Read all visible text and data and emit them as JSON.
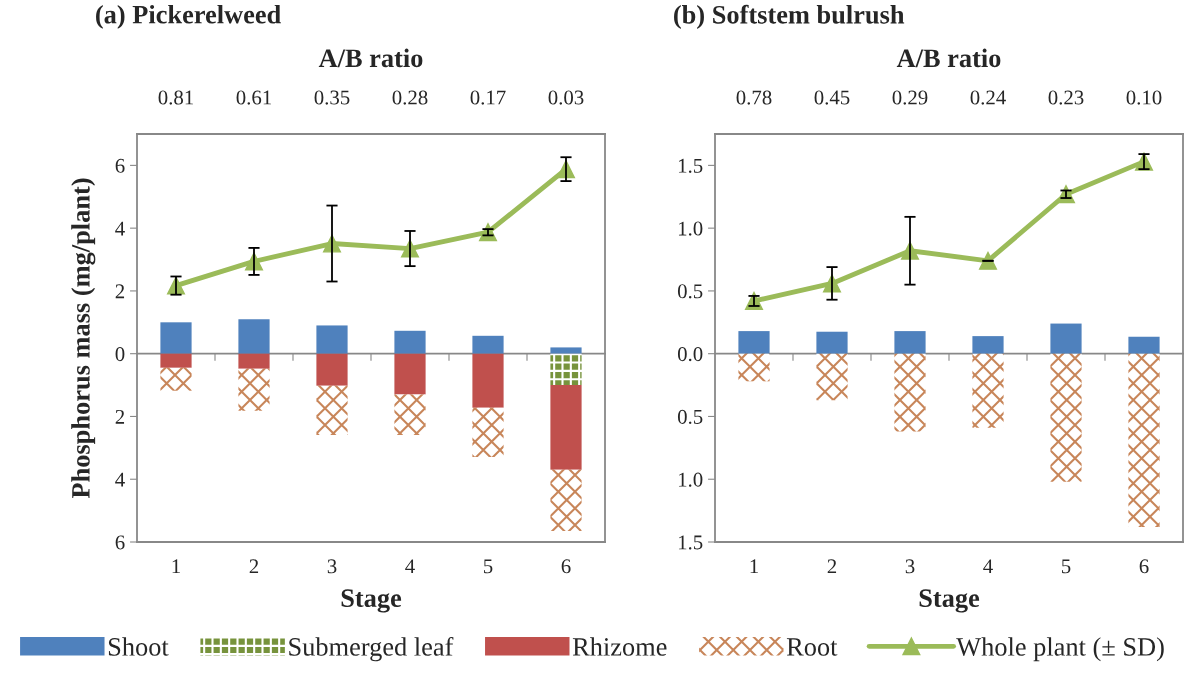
{
  "chart_data": [
    {
      "type": "bar",
      "title": "(a) Pickerelweed",
      "xlabel": "Stage",
      "ylabel": "Phosphorus mass (mg/plant)",
      "stacked": true,
      "legend": "bottom",
      "categories": [
        "1",
        "2",
        "3",
        "4",
        "5",
        "6"
      ],
      "annotations": [
        "A/B ratio",
        "0.81",
        "0.61",
        "0.35",
        "0.28",
        "0.17",
        "0.03"
      ],
      "ylim": [
        -6,
        7
      ],
      "yticks": [
        {
          "value": -6,
          "label": "6"
        },
        {
          "value": -4,
          "label": "4"
        },
        {
          "value": -2,
          "label": "2"
        },
        0,
        2,
        4,
        6
      ],
      "series": [
        {
          "name": "Shoot",
          "color": "#4f81bd",
          "values": [
            1.0,
            1.1,
            0.9,
            0.73,
            0.57,
            0.2
          ]
        },
        {
          "name": "Submerged leaf",
          "color": "#77933c",
          "values": [
            0,
            0,
            0,
            0,
            0,
            -1.0
          ]
        },
        {
          "name": "Rhizome",
          "color": "#c0504d",
          "values": [
            -0.45,
            -0.48,
            -1.02,
            -1.3,
            -1.72,
            -2.7
          ]
        },
        {
          "name": "Root",
          "color": "#c8865a",
          "values": [
            -0.73,
            -1.34,
            -1.57,
            -1.29,
            -1.57,
            -1.95
          ]
        },
        {
          "name": "Whole plant (± SD)",
          "type": "line",
          "color": "#9bbb59",
          "marker": "triangle",
          "line_style": "solid",
          "values": [
            2.17,
            2.94,
            3.51,
            3.35,
            3.87,
            5.88
          ],
          "errors": [
            0.29,
            0.43,
            1.21,
            0.56,
            0.1,
            0.38
          ]
        }
      ]
    },
    {
      "type": "bar",
      "title": "(b) Softstem bulrush",
      "xlabel": "Stage",
      "stacked": true,
      "categories": [
        "1",
        "2",
        "3",
        "4",
        "5",
        "6"
      ],
      "annotations": [
        "A/B ratio",
        "0.78",
        "0.45",
        "0.29",
        "0.24",
        "0.23",
        "0.10"
      ],
      "ylim": [
        -1.5,
        1.75
      ],
      "yticks": [
        {
          "value": -1.5,
          "label": "1.5"
        },
        {
          "value": -1.0,
          "label": "1.0"
        },
        {
          "value": -0.5,
          "label": "0.5"
        },
        {
          "value": 0,
          "label": "0.0"
        },
        {
          "value": 0.5,
          "label": "0.5"
        },
        {
          "value": 1.0,
          "label": "1.0"
        },
        {
          "value": 1.5,
          "label": "1.5"
        }
      ],
      "series": [
        {
          "name": "Shoot",
          "color": "#4f81bd",
          "values": [
            0.18,
            0.175,
            0.18,
            0.14,
            0.24,
            0.135
          ]
        },
        {
          "name": "Root",
          "color": "#c8865a",
          "values": [
            -0.22,
            -0.37,
            -0.62,
            -0.59,
            -1.02,
            -1.38
          ]
        },
        {
          "name": "Whole plant (± SD)",
          "type": "line",
          "color": "#9bbb59",
          "marker": "triangle",
          "line_style": "solid",
          "values": [
            0.42,
            0.56,
            0.82,
            0.74,
            1.27,
            1.53
          ],
          "errors": [
            0.04,
            0.13,
            0.27,
            null,
            0.03,
            0.06
          ]
        }
      ]
    }
  ]
}
